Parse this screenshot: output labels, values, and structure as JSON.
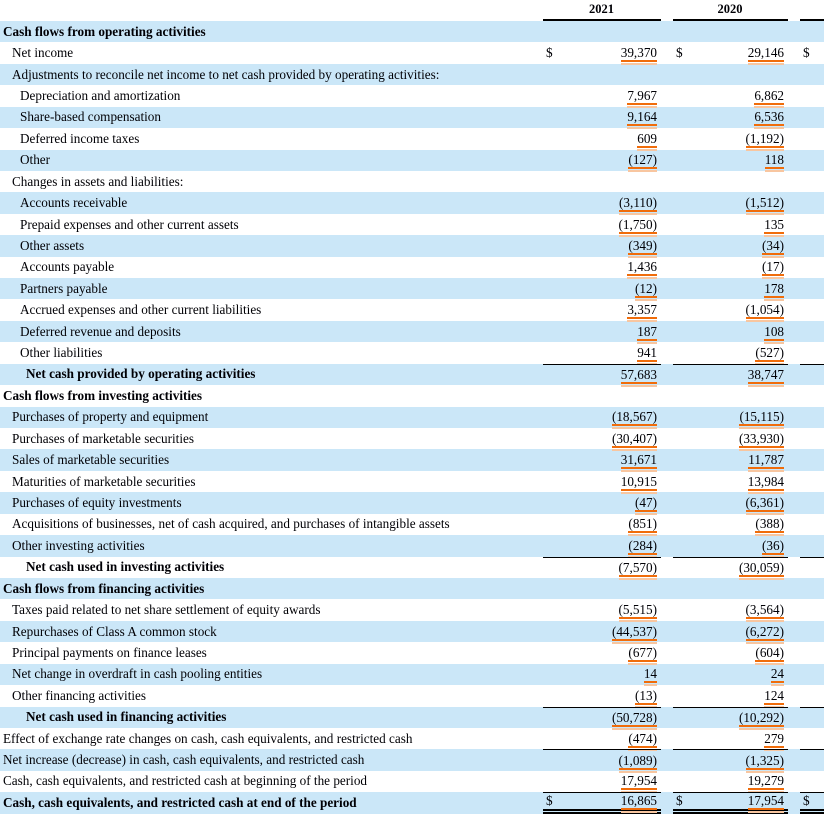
{
  "document": {
    "type": "consolidated-statement-of-cash-flows",
    "units_note": ""
  },
  "colors": {
    "stripe": "#cbe7f8",
    "underline_primary": "#f06c0a",
    "underline_secondary": "#f8c6a0",
    "rule": "#000000",
    "text": "#000005"
  },
  "header": {
    "year1": "2021",
    "year2": "2020",
    "currency_symbol": "$"
  },
  "rows": [
    {
      "label": "Cash flows from operating activities",
      "indent": 0,
      "bold": true,
      "stripe": true
    },
    {
      "label": "Net income",
      "indent": 1,
      "stripe": false,
      "dollar": true,
      "y2021": "39,370",
      "y2020": "29,146"
    },
    {
      "label": "Adjustments to reconcile net income to net cash provided by operating activities:",
      "indent": 1,
      "stripe": true
    },
    {
      "label": "Depreciation and amortization",
      "indent": 2,
      "stripe": false,
      "y2021": "7,967",
      "y2020": "6,862"
    },
    {
      "label": "Share-based compensation",
      "indent": 2,
      "stripe": true,
      "y2021": "9,164",
      "y2020": "6,536"
    },
    {
      "label": "Deferred income taxes",
      "indent": 2,
      "stripe": false,
      "y2021": "609",
      "y2020": "(1,192)"
    },
    {
      "label": "Other",
      "indent": 2,
      "stripe": true,
      "y2021": "(127)",
      "y2020": "118"
    },
    {
      "label": "Changes in assets and liabilities:",
      "indent": 1,
      "stripe": false
    },
    {
      "label": "Accounts receivable",
      "indent": 2,
      "stripe": true,
      "y2021": "(3,110)",
      "y2020": "(1,512)"
    },
    {
      "label": "Prepaid expenses and other current assets",
      "indent": 2,
      "stripe": false,
      "y2021": "(1,750)",
      "y2020": "135"
    },
    {
      "label": "Other assets",
      "indent": 2,
      "stripe": true,
      "y2021": "(349)",
      "y2020": "(34)"
    },
    {
      "label": "Accounts payable",
      "indent": 2,
      "stripe": false,
      "y2021": "1,436",
      "y2020": "(17)"
    },
    {
      "label": "Partners payable",
      "indent": 2,
      "stripe": true,
      "y2021": "(12)",
      "y2020": "178"
    },
    {
      "label": "Accrued expenses and other current liabilities",
      "indent": 2,
      "stripe": false,
      "y2021": "3,357",
      "y2020": "(1,054)"
    },
    {
      "label": "Deferred revenue and deposits",
      "indent": 2,
      "stripe": true,
      "y2021": "187",
      "y2020": "108"
    },
    {
      "label": "Other liabilities",
      "indent": 2,
      "stripe": false,
      "y2021": "941",
      "y2020": "(527)"
    },
    {
      "label": "Net cash provided by operating activities",
      "indent": 3,
      "bold": true,
      "stripe": true,
      "y2021": "57,683",
      "y2020": "38,747",
      "rule_top": true
    },
    {
      "label": "Cash flows from investing activities",
      "indent": 0,
      "bold": true,
      "stripe": false
    },
    {
      "label": "Purchases of property and equipment",
      "indent": 1,
      "stripe": true,
      "y2021": "(18,567)",
      "y2020": "(15,115)"
    },
    {
      "label": "Purchases of marketable securities",
      "indent": 1,
      "stripe": false,
      "y2021": "(30,407)",
      "y2020": "(33,930)"
    },
    {
      "label": "Sales of marketable securities",
      "indent": 1,
      "stripe": true,
      "y2021": "31,671",
      "y2020": "11,787"
    },
    {
      "label": "Maturities of marketable securities",
      "indent": 1,
      "stripe": false,
      "y2021": "10,915",
      "y2020": "13,984"
    },
    {
      "label": "Purchases of equity investments",
      "indent": 1,
      "stripe": true,
      "y2021": "(47)",
      "y2020": "(6,361)"
    },
    {
      "label": "Acquisitions of businesses, net of cash acquired, and purchases of intangible assets",
      "indent": 1,
      "stripe": false,
      "y2021": "(851)",
      "y2020": "(388)"
    },
    {
      "label": "Other investing activities",
      "indent": 1,
      "stripe": true,
      "y2021": "(284)",
      "y2020": "(36)"
    },
    {
      "label": "Net cash used in investing activities",
      "indent": 3,
      "bold": true,
      "stripe": false,
      "y2021": "(7,570)",
      "y2020": "(30,059)",
      "rule_top": true
    },
    {
      "label": "Cash flows from financing activities",
      "indent": 0,
      "bold": true,
      "stripe": true
    },
    {
      "label": "Taxes paid related to net share settlement of equity awards",
      "indent": 1,
      "stripe": false,
      "y2021": "(5,515)",
      "y2020": "(3,564)"
    },
    {
      "label": "Repurchases of Class A common stock",
      "indent": 1,
      "stripe": true,
      "y2021": "(44,537)",
      "y2020": "(6,272)"
    },
    {
      "label": "Principal payments on finance leases",
      "indent": 1,
      "stripe": false,
      "y2021": "(677)",
      "y2020": "(604)"
    },
    {
      "label": "Net change in overdraft in cash pooling entities",
      "indent": 1,
      "stripe": true,
      "y2021": "14",
      "y2020": "24"
    },
    {
      "label": "Other financing activities",
      "indent": 1,
      "stripe": false,
      "y2021": "(13)",
      "y2020": "124"
    },
    {
      "label": "Net cash used in financing activities",
      "indent": 3,
      "bold": true,
      "stripe": true,
      "y2021": "(50,728)",
      "y2020": "(10,292)",
      "rule_top": true
    },
    {
      "label": "Effect of exchange rate changes on cash, cash equivalents, and restricted cash",
      "indent": 0,
      "stripe": false,
      "y2021": "(474)",
      "y2020": "279"
    },
    {
      "label": "Net increase (decrease) in cash, cash equivalents, and restricted cash",
      "indent": 0,
      "stripe": true,
      "y2021": "(1,089)",
      "y2020": "(1,325)",
      "rule_top": true
    },
    {
      "label": "Cash, cash equivalents, and restricted cash at beginning of the period",
      "indent": 0,
      "stripe": false,
      "y2021": "17,954",
      "y2020": "19,279"
    },
    {
      "label": "Cash, cash equivalents, and restricted cash at end of the period",
      "indent": 0,
      "bold": true,
      "stripe": true,
      "dollar": true,
      "y2021": "16,865",
      "y2020": "17,954",
      "rule_top": true,
      "rule_double": true
    }
  ]
}
